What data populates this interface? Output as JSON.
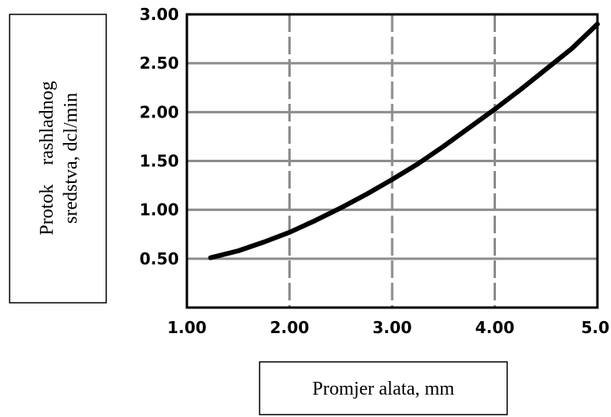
{
  "chart_data": {
    "type": "line",
    "xlabel": "Promjer alata, mm",
    "ylabel_lines": [
      "Protok    rashladnog",
      "sredstva, dcl/min"
    ],
    "xlim": [
      1.0,
      5.0
    ],
    "ylim": [
      0.0,
      3.0
    ],
    "xticks": [
      "1.00",
      "2.00",
      "3.00",
      "4.00",
      "5.0"
    ],
    "yticks": [
      "0.50",
      "1.00",
      "1.50",
      "2.00",
      "2.50",
      "3.00"
    ],
    "grid": true,
    "series": [
      {
        "x": [
          1.23,
          1.5,
          1.75,
          2.0,
          2.25,
          2.5,
          2.75,
          3.0,
          3.25,
          3.5,
          3.75,
          4.0,
          4.25,
          4.5,
          4.75,
          5.0
        ],
        "y": [
          0.51,
          0.58,
          0.67,
          0.77,
          0.89,
          1.02,
          1.16,
          1.31,
          1.47,
          1.65,
          1.84,
          2.03,
          2.23,
          2.44,
          2.65,
          2.9
        ],
        "color": "#000000"
      }
    ]
  }
}
